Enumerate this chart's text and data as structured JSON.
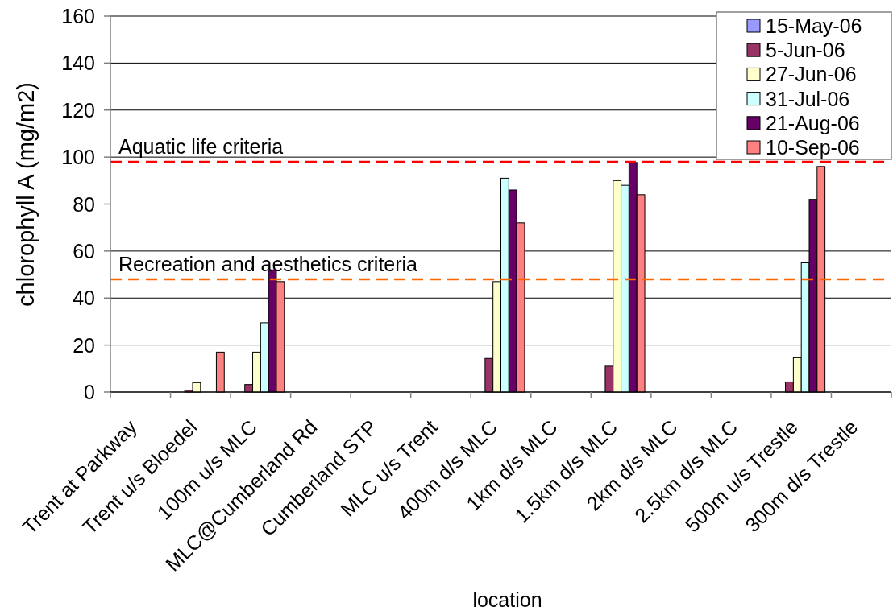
{
  "chart_data": {
    "type": "bar",
    "xlabel": "location",
    "ylabel": "chlorophyll A (mg/m2)",
    "categories": [
      "Trent at Parkway",
      "Trent u/s Bloedel",
      "100m u/s MLC",
      "MLC@Cumberland Rd",
      "Cumberland STP",
      "MLC u/s Trent",
      "400m d/s MLC",
      "1km d/s MLC",
      "1.5km d/s MLC",
      "2km d/s MLC",
      "2.5km d/s MLC",
      "500m u/s Trestle",
      "300m d/s Trestle"
    ],
    "series": [
      {
        "name": "15-May-06",
        "color": "#9999ff",
        "values": [
          null,
          null,
          null,
          null,
          null,
          null,
          null,
          null,
          null,
          null,
          null,
          null,
          null
        ]
      },
      {
        "name": "5-Jun-06",
        "color": "#993366",
        "values": [
          null,
          0.8,
          3.2,
          null,
          null,
          null,
          14.3,
          null,
          11,
          null,
          null,
          4.3,
          null
        ]
      },
      {
        "name": "27-Jun-06",
        "color": "#ffffcc",
        "values": [
          null,
          4,
          17,
          null,
          null,
          null,
          47,
          null,
          90,
          null,
          null,
          14.6,
          null
        ]
      },
      {
        "name": "31-Jul-06",
        "color": "#ccffff",
        "values": [
          null,
          null,
          29.5,
          null,
          null,
          null,
          91,
          null,
          88,
          null,
          null,
          55,
          null
        ]
      },
      {
        "name": "21-Aug-06",
        "color": "#660066",
        "values": [
          null,
          null,
          52,
          null,
          null,
          null,
          86,
          null,
          97.7,
          null,
          null,
          82,
          null
        ]
      },
      {
        "name": "10-Sep-06",
        "color": "#ff8080",
        "values": [
          null,
          17,
          47,
          null,
          null,
          null,
          72,
          null,
          84,
          null,
          null,
          96,
          null
        ]
      }
    ],
    "ylim": [
      0,
      160
    ],
    "yticks": [
      0,
      20,
      40,
      60,
      80,
      100,
      120,
      140,
      160
    ],
    "grid": "y",
    "legend": "top right",
    "ref_lines": [
      {
        "axis": "y",
        "value": 98,
        "label": "Aquatic life criteria",
        "color": "#ff0000",
        "line_style": "dashed"
      },
      {
        "axis": "y",
        "value": 48,
        "label": "Recreation and aesthetics criteria",
        "color": "#ff6600",
        "line_style": "dashed"
      }
    ]
  }
}
